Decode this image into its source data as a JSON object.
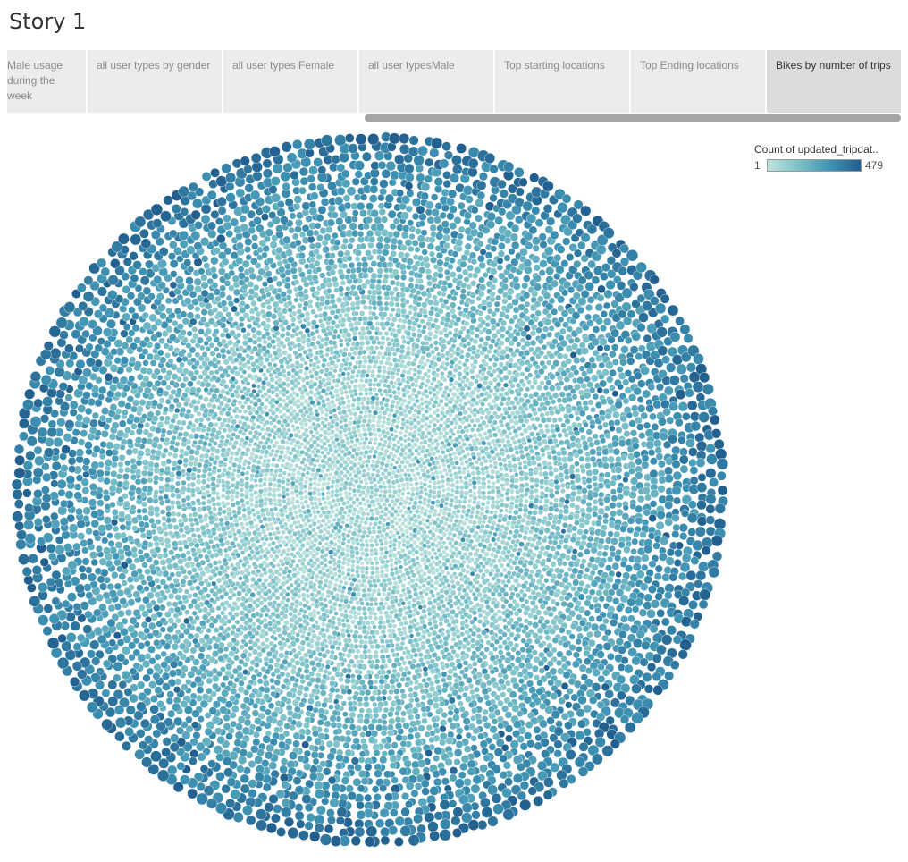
{
  "story": {
    "title": "Story 1"
  },
  "nav": {
    "points": [
      {
        "label": "Male usage during the week",
        "active": false
      },
      {
        "label": "all user types by gender",
        "active": false
      },
      {
        "label": "all user types Female",
        "active": false
      },
      {
        "label": "all user typesMale",
        "active": false
      },
      {
        "label": "Top starting locations",
        "active": false
      },
      {
        "label": "Top Ending locations",
        "active": false
      },
      {
        "label": "Bikes by number of trips",
        "active": true
      }
    ]
  },
  "legend": {
    "title": "Count of updated_tripdat..",
    "min": "1",
    "max": "479",
    "colors": [
      "#bfe3dd",
      "#7cc1c8",
      "#3f93b3",
      "#225f8e"
    ]
  },
  "chart_data": {
    "type": "packed-bubble",
    "measure": "Count of updated_tripdat..",
    "color_range": [
      1,
      479
    ],
    "layout": "circular pack, darker (higher count) bubbles on outer ring, lighter (lower count) in center"
  }
}
